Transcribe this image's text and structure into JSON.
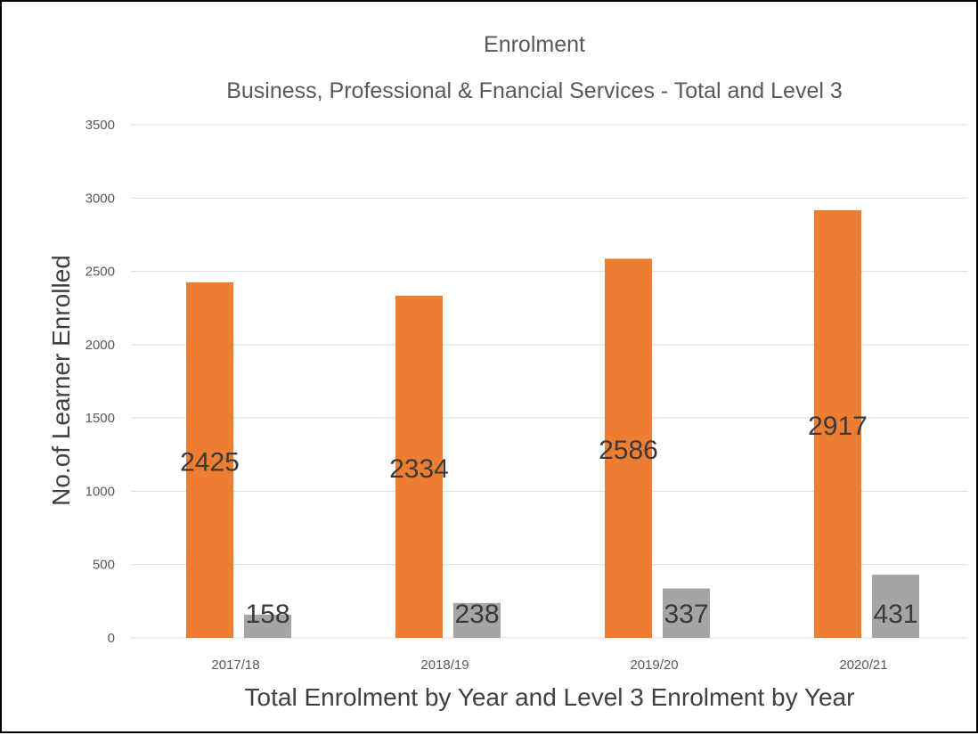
{
  "chart_data": {
    "type": "bar",
    "title": "Enrolment",
    "subtitle": "Business, Professional & Fnancial Services - Total and Level 3",
    "xlabel": "Total Enrolment by Year and Level 3 Enrolment by Year",
    "ylabel": "No.of Learner Enrolled",
    "categories": [
      "2017/18",
      "2018/19",
      "2019/20",
      "2020/21"
    ],
    "series": [
      {
        "values": [
          2425,
          2334,
          2586,
          2917
        ],
        "color": "#ED7D31"
      },
      {
        "values": [
          158,
          238,
          337,
          431
        ],
        "color": "#A5A5A5"
      }
    ],
    "ylim": [
      0,
      3500
    ],
    "yticks": [
      0,
      500,
      1000,
      1500,
      2000,
      2500,
      3000,
      3500
    ],
    "grid": true,
    "legend": "none",
    "gridline_color": "#D9D9D9"
  }
}
